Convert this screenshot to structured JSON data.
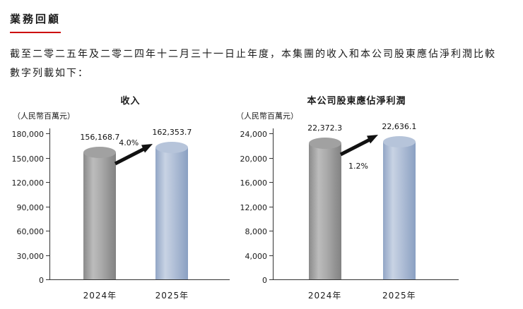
{
  "page": {
    "heading": "業務回顧",
    "intro_lines": [
      "截至二零二五年及二零二四年十二月三十一日止年度，本集團的收入和本公司股東應佔淨利潤比較",
      "數字列載如下："
    ]
  },
  "colors": {
    "heading_underline": "#cc0000",
    "bar_2024": "#a0a0a0",
    "bar_2025": "#aebfd8",
    "arrow": "#111111"
  },
  "chart_data": [
    {
      "type": "bar",
      "title": "收入",
      "unit_label": "（人民幣百萬元）",
      "categories": [
        "2024年",
        "2025年"
      ],
      "values": [
        156168.7,
        162353.7
      ],
      "value_labels": [
        "156,168.7",
        "162,353.7"
      ],
      "change_label": "4.0%",
      "change_label_position": "above",
      "ylim": [
        0,
        180000
      ],
      "yticks": [
        0,
        30000,
        60000,
        90000,
        120000,
        150000,
        180000
      ],
      "ytick_labels": [
        "0",
        "30,000",
        "60,000",
        "90,000",
        "120,000",
        "150,000",
        "180,000"
      ],
      "bar_colors": [
        "#a0a0a0",
        "#aebfd8"
      ],
      "grid": false,
      "legend": false
    },
    {
      "type": "bar",
      "title": "本公司股東應佔淨利潤",
      "unit_label": "（人民幣百萬元）",
      "categories": [
        "2024年",
        "2025年"
      ],
      "values": [
        22372.3,
        22636.1
      ],
      "value_labels": [
        "22,372.3",
        "22,636.1"
      ],
      "change_label": "1.2%",
      "change_label_position": "below",
      "ylim": [
        0,
        24000
      ],
      "yticks": [
        0,
        4000,
        8000,
        12000,
        16000,
        20000,
        24000
      ],
      "ytick_labels": [
        "0",
        "4,000",
        "8,000",
        "12,000",
        "16,000",
        "20,000",
        "24,000"
      ],
      "bar_colors": [
        "#a0a0a0",
        "#aebfd8"
      ],
      "grid": false,
      "legend": false
    }
  ]
}
